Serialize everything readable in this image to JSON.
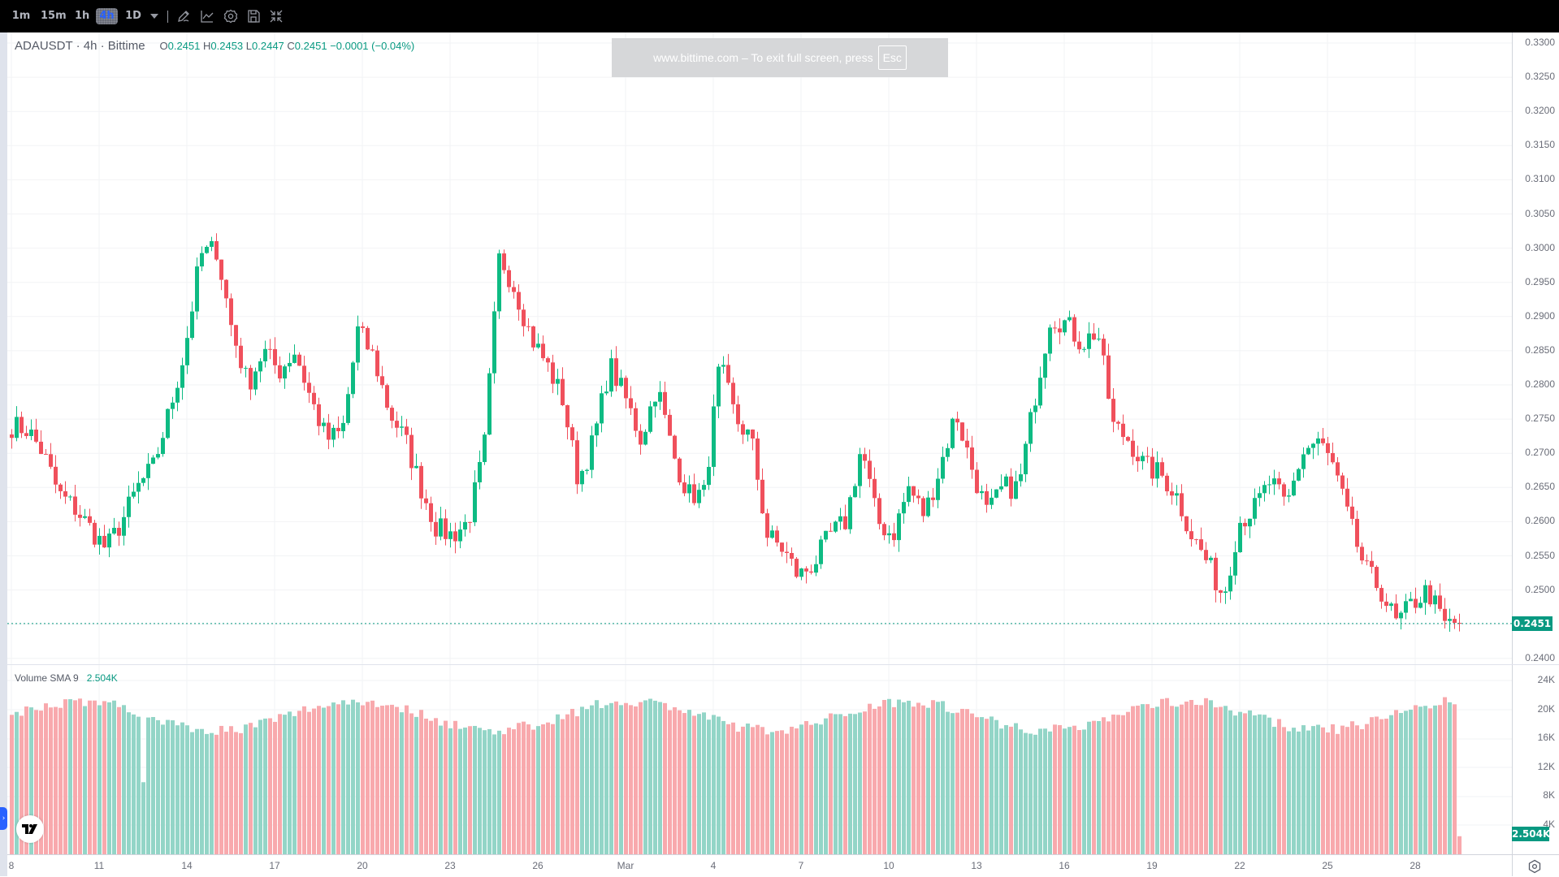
{
  "toolbar": {
    "timeframes": [
      {
        "label": "1m",
        "selected": false
      },
      {
        "label": "15m",
        "selected": false
      },
      {
        "label": "1h",
        "selected": false
      },
      {
        "label": "4h",
        "selected": true
      },
      {
        "label": "1D",
        "selected": false
      }
    ],
    "icons": [
      "chevron-down-icon",
      "pencil-icon",
      "indicator-chart-icon",
      "gear-icon",
      "save-icon",
      "exit-fullscreen-icon"
    ]
  },
  "legend": {
    "symbol": "ADAUSDT · 4h · Bittime",
    "open_key": "O",
    "open": "0.2451",
    "high_key": "H",
    "high": "0.2453",
    "low_key": "L",
    "low": "0.2447",
    "close_key": "C",
    "close": "0.2451",
    "change": "−0.0001 (−0.04%)"
  },
  "banner": {
    "text": "www.bittime.com – To exit full screen, press",
    "key": "Esc"
  },
  "price_axis": {
    "ticks": [
      "0.3300",
      "0.3250",
      "0.3200",
      "0.3150",
      "0.3100",
      "0.3050",
      "0.3000",
      "0.2950",
      "0.2900",
      "0.2850",
      "0.2800",
      "0.2750",
      "0.2700",
      "0.2650",
      "0.2600",
      "0.2550",
      "0.2500",
      "0.2400"
    ],
    "last_price": "0.2451"
  },
  "volume": {
    "label": "Volume SMA 9",
    "value": "2.504K",
    "ticks": [
      "24K",
      "20K",
      "16K",
      "12K",
      "8K",
      "4K"
    ],
    "last_value": "2.504K"
  },
  "time_axis": {
    "labels": [
      "8",
      "11",
      "14",
      "17",
      "20",
      "23",
      "26",
      "Mar",
      "4",
      "7",
      "10",
      "13",
      "16",
      "19",
      "22",
      "25",
      "28"
    ]
  },
  "colors": {
    "up": "#0ebb83",
    "down": "#f0505c",
    "vol_up": "#93d5c7",
    "vol_down": "#f8a9ad",
    "grid": "#f2f3f5",
    "last_line": "#089981"
  },
  "chart_data": {
    "type": "candlestick",
    "symbol": "ADAUSDT",
    "interval": "4h",
    "ylim": [
      0.24,
      0.33
    ],
    "anchor_closes": [
      0.274,
      0.2735,
      0.27,
      0.264,
      0.262,
      0.259,
      0.256,
      0.26,
      0.265,
      0.268,
      0.276,
      0.285,
      0.299,
      0.3,
      0.288,
      0.28,
      0.285,
      0.282,
      0.285,
      0.278,
      0.272,
      0.273,
      0.288,
      0.284,
      0.276,
      0.272,
      0.265,
      0.259,
      0.258,
      0.26,
      0.27,
      0.299,
      0.294,
      0.287,
      0.283,
      0.278,
      0.266,
      0.272,
      0.283,
      0.278,
      0.272,
      0.28,
      0.27,
      0.264,
      0.264,
      0.283,
      0.275,
      0.272,
      0.258,
      0.256,
      0.252,
      0.254,
      0.258,
      0.26,
      0.271,
      0.26,
      0.258,
      0.265,
      0.261,
      0.268,
      0.276,
      0.268,
      0.261,
      0.265,
      0.265,
      0.278,
      0.29,
      0.289,
      0.286,
      0.288,
      0.274,
      0.272,
      0.268,
      0.267,
      0.264,
      0.258,
      0.254,
      0.249,
      0.26,
      0.262,
      0.266,
      0.262,
      0.27,
      0.272,
      0.268,
      0.26,
      0.253,
      0.25,
      0.245,
      0.248,
      0.25,
      0.245,
      0.2451
    ],
    "volume_range": [
      0,
      24000
    ],
    "last": {
      "open": 0.2451,
      "high": 0.2453,
      "low": 0.2447,
      "close": 0.2451,
      "change": -0.0001,
      "change_pct": -0.04
    }
  }
}
